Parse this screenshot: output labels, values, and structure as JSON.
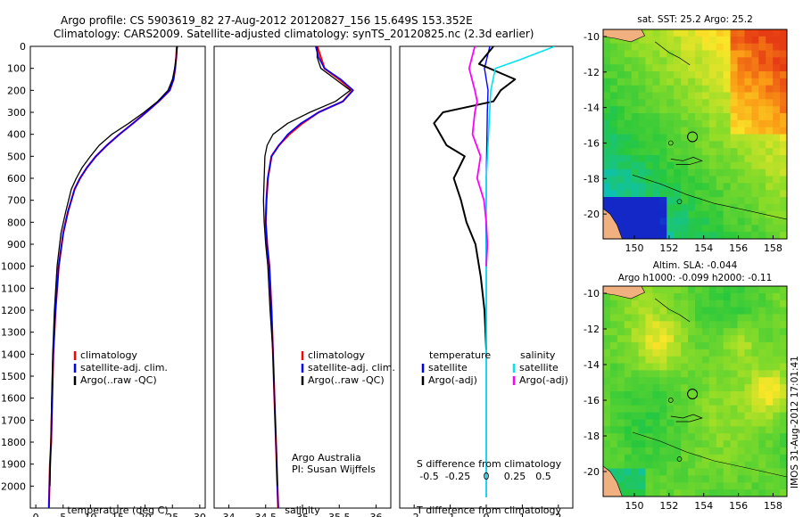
{
  "header": {
    "line1": "Argo profile: CS 5903619_82 27-Aug-2012 20120827_156 15.649S 153.352E",
    "line2": "Climatology: CARS2009. Satellite-adjusted climatology: synTS_20120825.nc (2.3d earlier)"
  },
  "colors": {
    "climatology": "#ff0000",
    "satellite": "#0000ff",
    "argo": "#000000",
    "sal_satellite": "#00e5ee",
    "sal_argo": "#ff00ff",
    "land": "#f0b080"
  },
  "chart_data": [
    {
      "type": "line",
      "id": "temperature",
      "xlabel": "temperature (deg C)",
      "ylabel": "",
      "xlim": [
        -1,
        31
      ],
      "ylim": [
        2100,
        0
      ],
      "xticks": [
        "0",
        "5",
        "10",
        "15",
        "20",
        "25",
        "30"
      ],
      "xtick_values": [
        0,
        5,
        10,
        15,
        20,
        25,
        30
      ],
      "yticks": [
        "0",
        "100",
        "200",
        "300",
        "400",
        "500",
        "600",
        "700",
        "800",
        "900",
        "1000",
        "1100",
        "1200",
        "1300",
        "1400",
        "1500",
        "1600",
        "1700",
        "1800",
        "1900",
        "2000"
      ],
      "ytick_values": [
        0,
        100,
        200,
        300,
        400,
        500,
        600,
        700,
        800,
        900,
        1000,
        1100,
        1200,
        1300,
        1400,
        1500,
        1600,
        1700,
        1800,
        1900,
        2000
      ],
      "legend": [
        "climatology",
        "satellite-adj. clim.",
        "Argo(..raw -QC)"
      ],
      "series": [
        {
          "name": "climatology",
          "x": [
            25.8,
            25.7,
            25.5,
            25.2,
            24.5,
            22.5,
            20.2,
            17.8,
            15.3,
            13,
            11,
            9.4,
            8.1,
            7.1,
            5.9,
            5,
            4.2,
            3.6,
            3.2,
            3,
            2.8,
            2.6,
            2.5,
            2.45,
            2.4
          ],
          "y": [
            0,
            50,
            100,
            150,
            200,
            250,
            300,
            350,
            400,
            450,
            500,
            550,
            600,
            650,
            750,
            850,
            1000,
            1200,
            1400,
            1600,
            1800,
            1900,
            2000,
            2050,
            2100
          ]
        },
        {
          "name": "satellite-adj. clim.",
          "x": [
            25.8,
            25.7,
            25.5,
            25.2,
            24.5,
            22.5,
            20.2,
            17.8,
            15.3,
            13,
            11,
            9.4,
            8.1,
            7.1,
            5.9,
            5,
            4.2,
            3.6,
            3.2,
            3,
            2.8,
            2.6,
            2.5,
            2.45,
            2.4
          ],
          "y": [
            0,
            50,
            100,
            150,
            200,
            250,
            300,
            350,
            400,
            450,
            500,
            550,
            600,
            650,
            750,
            850,
            1000,
            1200,
            1400,
            1600,
            1800,
            1900,
            2000,
            2050,
            2100
          ]
        },
        {
          "name": "Argo(..raw -QC)",
          "x": [
            25.9,
            25.7,
            25.4,
            25,
            24.2,
            22.3,
            19.8,
            17,
            13.9,
            11.6,
            10,
            8.5,
            7.4,
            6.5,
            5.5,
            4.6,
            3.9,
            3.4,
            3.1,
            2.9,
            2.75,
            2.6
          ],
          "y": [
            0,
            50,
            100,
            150,
            200,
            250,
            300,
            350,
            400,
            450,
            500,
            550,
            600,
            650,
            750,
            850,
            1000,
            1200,
            1400,
            1600,
            1800,
            2000
          ]
        }
      ]
    },
    {
      "type": "line",
      "id": "salinity",
      "xlabel": "salinity",
      "xlim": [
        33.8,
        36.2
      ],
      "ylim": [
        2100,
        0
      ],
      "xticks": [
        "34",
        "34.5",
        "35",
        "35.5",
        "36"
      ],
      "xtick_values": [
        34,
        34.5,
        35,
        35.5,
        36
      ],
      "legend": [
        "climatology",
        "satellite-adj. clim.",
        "Argo(..raw -QC)"
      ],
      "annotation": [
        "Argo Australia",
        "PI: Susan Wijffels"
      ],
      "series": [
        {
          "name": "climatology",
          "x": [
            35.2,
            35.25,
            35.3,
            35.5,
            35.68,
            35.55,
            35.22,
            35.0,
            34.82,
            34.68,
            34.58,
            34.53,
            34.51,
            34.5,
            34.52,
            34.55,
            34.58,
            34.6,
            34.62,
            34.64,
            34.66,
            34.67
          ],
          "y": [
            0,
            50,
            100,
            150,
            200,
            250,
            300,
            350,
            400,
            450,
            500,
            600,
            700,
            800,
            900,
            1000,
            1200,
            1400,
            1600,
            1800,
            2000,
            2100
          ]
        },
        {
          "name": "satellite-adj. clim.",
          "x": [
            35.18,
            35.22,
            35.3,
            35.52,
            35.69,
            35.55,
            35.22,
            34.98,
            34.8,
            34.68,
            34.58,
            34.53,
            34.51,
            34.5,
            34.52,
            34.55,
            34.58,
            34.6,
            34.62,
            34.64,
            34.66,
            34.67
          ],
          "y": [
            0,
            50,
            100,
            150,
            200,
            250,
            300,
            350,
            400,
            450,
            500,
            600,
            700,
            800,
            900,
            1000,
            1200,
            1400,
            1600,
            1800,
            2000,
            2100
          ]
        },
        {
          "name": "Argo(..raw -QC)",
          "x": [
            35.2,
            35.2,
            35.25,
            35.45,
            35.65,
            35.45,
            35.1,
            34.8,
            34.6,
            34.52,
            34.49,
            34.48,
            34.47,
            34.48,
            34.5,
            34.53,
            34.56,
            34.6,
            34.62,
            34.64,
            34.66
          ],
          "y": [
            0,
            50,
            100,
            150,
            200,
            250,
            300,
            350,
            400,
            450,
            500,
            600,
            700,
            800,
            900,
            1000,
            1200,
            1400,
            1600,
            1800,
            2000
          ]
        }
      ]
    },
    {
      "type": "line",
      "id": "difference",
      "xlabel": "T difference from climatology",
      "xlabel2": "S difference from climatology",
      "xlim": [
        -2.4,
        2.4
      ],
      "ylim": [
        2100,
        0
      ],
      "xticks": [
        "-2",
        "-1",
        "0",
        "1",
        "2"
      ],
      "xtick_values": [
        -2,
        -1,
        0,
        1,
        2
      ],
      "s_ticks": [
        "-0.5",
        "-0.25",
        "0",
        "0.25",
        "0.5"
      ],
      "s_tick_values": [
        -0.5,
        -0.25,
        0,
        0.25,
        0.5
      ],
      "legend_titles": [
        "temperature",
        "salinity"
      ],
      "legend_t": [
        "satellite",
        "Argo(-adj)"
      ],
      "legend_s": [
        "satellite",
        "Argo(-adj)"
      ],
      "series": [
        {
          "name": "T satellite",
          "x": [
            0.1,
            -0.05,
            0.05,
            0.03,
            0.02,
            0.01,
            0,
            0,
            -0.01,
            0,
            0,
            0,
            0,
            0,
            0
          ],
          "y": [
            0,
            100,
            200,
            300,
            400,
            500,
            600,
            700,
            800,
            1000,
            1200,
            1400,
            1600,
            1800,
            2050
          ]
        },
        {
          "name": "T Argo(-adj)",
          "x": [
            0.2,
            -0.2,
            0.8,
            0.4,
            0.2,
            -1.2,
            -1.45,
            -1.1,
            -0.6,
            -0.9,
            -0.7,
            -0.55,
            -0.3,
            -0.15,
            -0.05,
            0
          ],
          "y": [
            0,
            80,
            150,
            200,
            250,
            300,
            350,
            450,
            500,
            600,
            700,
            800,
            900,
            1050,
            1200,
            1380
          ]
        },
        {
          "name": "S satellite",
          "x": [
            0.6,
            0.3,
            0.08,
            0.04,
            0.03,
            0.02,
            0.01,
            0,
            0,
            0,
            0,
            0,
            0,
            0
          ],
          "y": [
            0,
            60,
            100,
            200,
            300,
            400,
            500,
            600,
            700,
            800,
            1000,
            1400,
            1800,
            2050
          ]
        },
        {
          "name": "S Argo(-adj)",
          "x": [
            -0.1,
            -0.15,
            -0.1,
            -0.08,
            -0.1,
            -0.12,
            -0.05,
            -0.08,
            -0.02,
            0,
            0.01,
            0
          ],
          "y": [
            0,
            100,
            200,
            250,
            300,
            400,
            500,
            600,
            700,
            800,
            900,
            1000
          ]
        }
      ]
    },
    {
      "type": "heatmap",
      "id": "sst-map",
      "title": "sat. SST: 25.2 Argo: 25.2",
      "xticks": [
        "150",
        "152",
        "154",
        "156",
        "158"
      ],
      "xtick_values": [
        150,
        152,
        154,
        156,
        158
      ],
      "yticks": [
        "-10",
        "-12",
        "-14",
        "-16",
        "-18",
        "-20"
      ],
      "ytick_values": [
        -10,
        -12,
        -14,
        -16,
        -18,
        -20
      ],
      "xlim": [
        148.2,
        158.8
      ],
      "ylim": [
        -21.4,
        -9.6
      ],
      "profile_location": [
        153.352,
        -15.649
      ]
    },
    {
      "type": "heatmap",
      "id": "sla-map",
      "title": "Altim. SLA: -0.044",
      "subtitle": "Argo h1000: -0.099 h2000: -0.11",
      "xticks": [
        "150",
        "152",
        "154",
        "156",
        "158"
      ],
      "xtick_values": [
        150,
        152,
        154,
        156,
        158
      ],
      "yticks": [
        "-10",
        "-12",
        "-14",
        "-16",
        "-18",
        "-20"
      ],
      "ytick_values": [
        -10,
        -12,
        -14,
        -16,
        -18,
        -20
      ],
      "xlim": [
        148.2,
        158.8
      ],
      "ylim": [
        -21.4,
        -9.6
      ],
      "profile_location": [
        153.352,
        -15.649
      ]
    }
  ],
  "footer": {
    "timestamp": "IMOS 31-Aug-2012 17:01:41"
  }
}
